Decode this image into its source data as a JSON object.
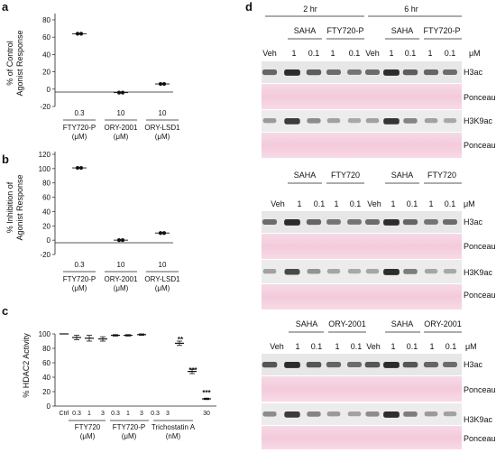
{
  "panels": {
    "a": {
      "letter": "a",
      "ylabel": [
        "% of Control",
        "Agonist Response"
      ],
      "yticks": [
        "80",
        "60",
        "40",
        "20",
        "0",
        "-20"
      ],
      "conc": [
        "0.3",
        "10",
        "10"
      ],
      "compounds": [
        "FTY720-P",
        "ORY-2001",
        "ORY-LSD1"
      ],
      "units": [
        "(μM)",
        "(μM)",
        "(μM)"
      ]
    },
    "b": {
      "letter": "b",
      "ylabel": [
        "% Inhibition of",
        "Agonist Response"
      ],
      "yticks": [
        "120",
        "100",
        "80",
        "60",
        "40",
        "20",
        "0",
        "-20"
      ],
      "conc": [
        "0.3",
        "10",
        "10"
      ],
      "compounds": [
        "FTY720-P",
        "ORY-2001",
        "ORY-LSD1"
      ],
      "units": [
        "(μM)",
        "(μM)",
        "(μM)"
      ]
    },
    "c": {
      "letter": "c",
      "ylabel": "% HDAC2 Activity",
      "yticks": [
        "100",
        "80",
        "60",
        "40",
        "20",
        "0"
      ],
      "xticks": [
        "Ctrl",
        "0.3",
        "1",
        "3",
        "0.3",
        "1",
        "3",
        "0.3",
        "3",
        "30"
      ],
      "groups": [
        "FTY720",
        "FTY720-P",
        "Trichostatin A"
      ],
      "group_units": [
        "(μM)",
        "(μM)",
        "(nM)"
      ],
      "significance": [
        "**",
        "***",
        "***"
      ]
    },
    "d": {
      "letter": "d",
      "times": [
        "2 hr",
        "6 hr"
      ],
      "unit": "μM",
      "veh": "Veh",
      "doses": [
        "1",
        "0.1",
        "1",
        "0.1"
      ],
      "blocks": [
        {
          "labels": [
            "SAHA",
            "FTY720-P",
            "SAHA",
            "FTY720-P"
          ],
          "rows": [
            "H3ac",
            "Ponceau",
            "H3K9ac",
            "Ponceau"
          ]
        },
        {
          "labels": [
            "SAHA",
            "FTY720",
            "SAHA",
            "FTY720"
          ],
          "rows": [
            "H3ac",
            "Ponceau",
            "H3K9ac",
            "Ponceau"
          ]
        },
        {
          "labels": [
            "SAHA",
            "ORY-2001",
            "SAHA",
            "ORY-2001"
          ],
          "rows": [
            "H3ac",
            "Ponceau",
            "H3K9ac",
            "Ponceau"
          ]
        }
      ]
    }
  },
  "chart_data": [
    {
      "panel": "a",
      "type": "scatter",
      "ylabel": "% of Control Agonist Response",
      "ylim": [
        -20,
        80
      ],
      "categories": [
        "FTY720-P (0.3 μM)",
        "ORY-2001 (10 μM)",
        "ORY-LSD1 (10 μM)"
      ],
      "values": [
        64,
        -4,
        6
      ]
    },
    {
      "panel": "b",
      "type": "scatter",
      "ylabel": "% Inhibition of Agonist Response",
      "ylim": [
        -20,
        120
      ],
      "categories": [
        "FTY720-P (0.3 μM)",
        "ORY-2001 (10 μM)",
        "ORY-LSD1 (10 μM)"
      ],
      "values": [
        101,
        0,
        10
      ]
    },
    {
      "panel": "c",
      "type": "scatter",
      "ylabel": "% HDAC2 Activity",
      "ylim": [
        0,
        100
      ],
      "categories": [
        "Ctrl",
        "FTY720 0.3",
        "FTY720 1",
        "FTY720 3",
        "FTY720-P 0.3",
        "FTY720-P 1",
        "FTY720-P 3",
        "Trichostatin A 0.3",
        "Trichostatin A 3",
        "Trichostatin A 30"
      ],
      "values": [
        100,
        95,
        94,
        93,
        98,
        98,
        99,
        87,
        48,
        10
      ],
      "errors": [
        0,
        3,
        4,
        3,
        1,
        1,
        1,
        3,
        3,
        1
      ]
    }
  ]
}
